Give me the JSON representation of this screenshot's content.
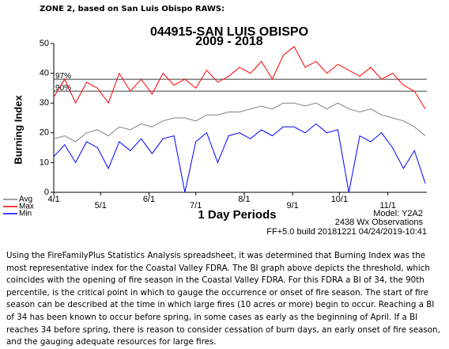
{
  "header": {
    "title": "ZONE 2, based on San Luis Obispo RAWS:"
  },
  "chart_data": {
    "type": "line",
    "title": "044915-SAN LUIS OBISPO",
    "subtitle": "2009 - 2018",
    "y_label": "Burning Index",
    "x_label": "1 Day Periods",
    "notes": [
      "Model: Y2A2",
      "2438 Wx Observations",
      "FF+5.0 build 20181221 04/24/2019-10:41"
    ],
    "x": [
      "4/1",
      "4/8",
      "4/15",
      "4/22",
      "4/29",
      "5/6",
      "5/13",
      "5/20",
      "5/27",
      "6/3",
      "6/10",
      "6/17",
      "6/24",
      "7/1",
      "7/8",
      "7/15",
      "7/22",
      "7/29",
      "8/5",
      "8/12",
      "8/19",
      "8/26",
      "9/2",
      "9/9",
      "9/16",
      "9/23",
      "9/30",
      "10/7",
      "10/14",
      "10/21",
      "10/28",
      "11/4",
      "11/11",
      "11/18",
      "11/25"
    ],
    "xlim": [
      "4/1",
      "11/26"
    ],
    "xticks": [
      "4/1",
      "5/1",
      "6/1",
      "7/1",
      "8/1",
      "9/1",
      "10/1",
      "11/1"
    ],
    "ylim": [
      0,
      50
    ],
    "yticks": [
      0,
      10,
      20,
      30,
      40,
      50
    ],
    "reference_lines": [
      {
        "label": "97%",
        "value": 38
      },
      {
        "label": "90%",
        "value": 34
      }
    ],
    "legend": "bottom-left",
    "series": [
      {
        "name": "Avg",
        "color": "#808080",
        "values": [
          18,
          19,
          17,
          20,
          21,
          19,
          22,
          21,
          23,
          22,
          24,
          25,
          25,
          24,
          26,
          26,
          27,
          27,
          28,
          29,
          28,
          30,
          30,
          29,
          30,
          28,
          30,
          28,
          27,
          28,
          26,
          25,
          24,
          22,
          19
        ]
      },
      {
        "name": "Max",
        "color": "#ff0000",
        "values": [
          32,
          38,
          30,
          37,
          35,
          30,
          40,
          34,
          38,
          33,
          40,
          36,
          38,
          35,
          41,
          37,
          39,
          42,
          40,
          44,
          38,
          46,
          49,
          42,
          44,
          40,
          43,
          41,
          39,
          42,
          38,
          40,
          36,
          34,
          28
        ]
      },
      {
        "name": "Min",
        "color": "#0000ff",
        "values": [
          12,
          16,
          10,
          17,
          15,
          8,
          17,
          14,
          18,
          13,
          18,
          19,
          0,
          17,
          20,
          10,
          19,
          20,
          18,
          21,
          19,
          22,
          22,
          20,
          23,
          20,
          21,
          0,
          19,
          17,
          20,
          15,
          8,
          14,
          3
        ]
      }
    ]
  },
  "paragraph": "Using the FireFamilyPlus Statistics Analysis spreadsheet, it was determined that Burning Index was the most representative index for the Coastal Valley FDRA.  The BI graph above depicts the threshold, which coincides with the opening of fire season in the Coastal Valley FDRA.  For this FDRA a BI of 34, the 90th percentile, is the critical point in which to gauge the occurrence or onset of fire season. The start of fire season can be described at the time in which large fires (10 acres or more) begin to occur. Reaching a BI of 34 has been known to occur before spring, in some cases as early as the beginning of April. If a BI reaches 34 before spring, there is reason to consider cessation of burn days, an early onset of fire season, and the gauging adequate resources for large fires."
}
